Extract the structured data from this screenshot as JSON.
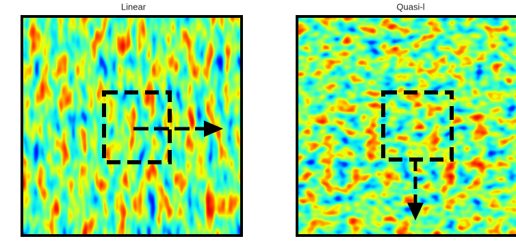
{
  "panels": [
    {
      "title": "Linear"
    },
    {
      "title": "Quasi-l"
    }
  ]
}
